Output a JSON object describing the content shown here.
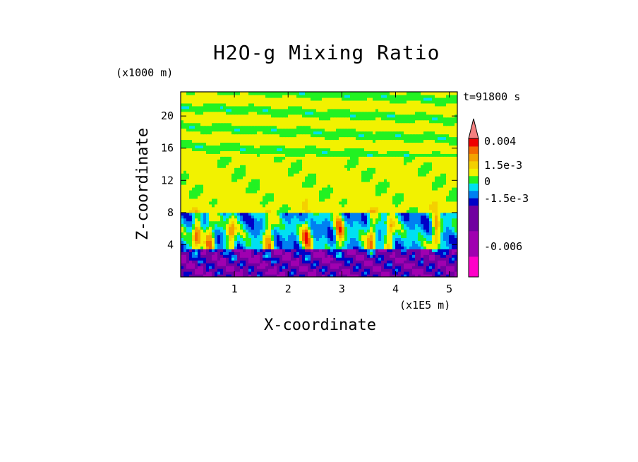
{
  "chart_data": {
    "type": "heatmap",
    "title": "H2O-g Mixing Ratio",
    "xlabel": "X-coordinate",
    "ylabel": "Z-coordinate",
    "x_multiplier": "(x1E5 m)",
    "y_multiplier": "(x1000 m)",
    "time_label": "t=91800 s",
    "x_ticks": [
      "1",
      "2",
      "3",
      "4",
      "5"
    ],
    "y_ticks": [
      "4",
      "8",
      "12",
      "16",
      "20"
    ],
    "xlim": [
      0,
      5.15
    ],
    "ylim": [
      0,
      23
    ],
    "colorbar": {
      "labels": [
        "0.004",
        "1.5e-3",
        "0",
        "-1.5e-3",
        "-0.006"
      ],
      "colors": [
        "#f47f7f",
        "#ef0000",
        "#f46a00",
        "#f4a300",
        "#f4d000",
        "#f2f200",
        "#22f222",
        "#00e0f2",
        "#0080f2",
        "#0000c8",
        "#7000a0",
        "#a000b0",
        "#ff00c8"
      ]
    },
    "bands": [
      {
        "from": 0,
        "to": 4,
        "dominant": "negative anomaly (purple/blue)"
      },
      {
        "from": 4,
        "to": 8,
        "dominant": "convective plumes (orange/red) with cyan"
      },
      {
        "from": 8,
        "to": 15,
        "dominant": "near zero (yellow)"
      },
      {
        "from": 15,
        "to": 23,
        "dominant": "layered yellow/green"
      }
    ]
  }
}
